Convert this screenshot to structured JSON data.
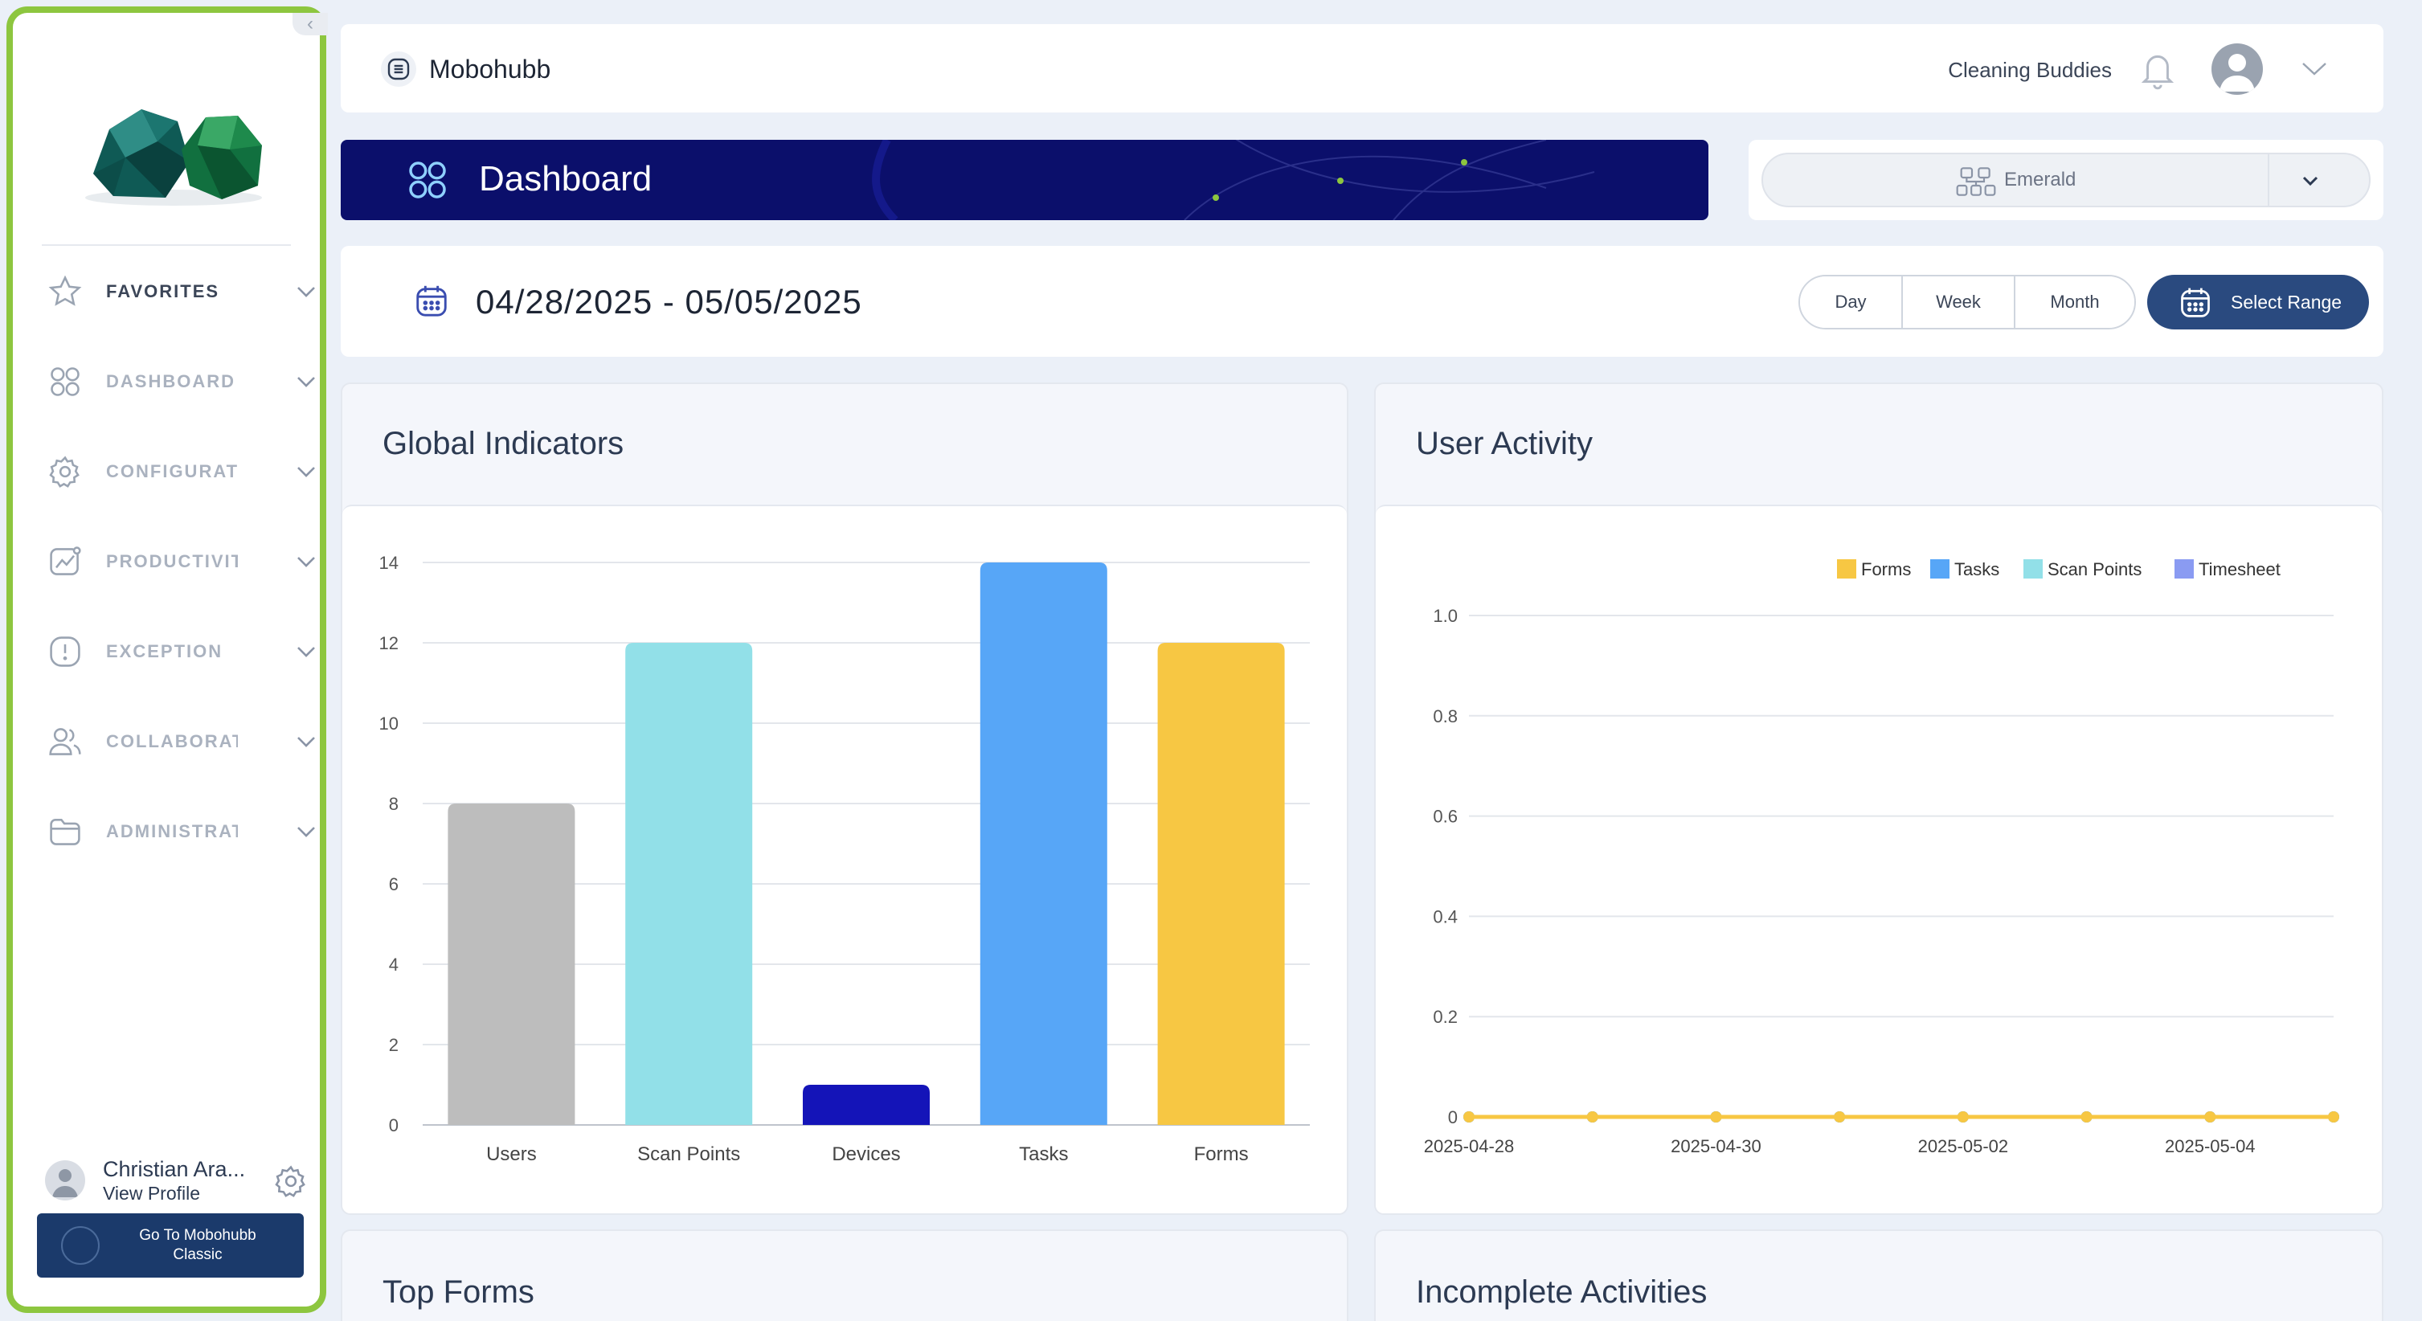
{
  "sidebar": {
    "items": [
      {
        "label": "FAVORITES",
        "icon": "star-icon"
      },
      {
        "label": "DASHBOARD",
        "icon": "grid-icon"
      },
      {
        "label": "CONFIGURATION",
        "icon": "gear-icon"
      },
      {
        "label": "PRODUCTIVITY",
        "icon": "chart-line-icon"
      },
      {
        "label": "EXCEPTION",
        "icon": "alert-icon"
      },
      {
        "label": "COLLABORATION",
        "icon": "users-icon"
      },
      {
        "label": "ADMINISTRATION",
        "icon": "folder-icon"
      }
    ],
    "profile": {
      "name": "Christian Ara...",
      "link": "View Profile"
    },
    "classic_button": "Go To Mobohubb Classic"
  },
  "topbar": {
    "brand": "Mobohubb",
    "company": "Cleaning Buddies"
  },
  "banner": {
    "title": "Dashboard"
  },
  "org_select": {
    "value": "Emerald"
  },
  "date_range": {
    "text": "04/28/2025 - 05/05/2025",
    "buttons": [
      "Day",
      "Week",
      "Month"
    ],
    "select_range": "Select Range"
  },
  "cards": {
    "global_indicators": "Global Indicators",
    "user_activity": "User Activity",
    "top_forms": "Top Forms",
    "incomplete_activities": "Incomplete Activities"
  },
  "colors": {
    "accent": "#2a4a7f",
    "banner": "#0b0f6b",
    "sidebar_border": "#8dc63f"
  },
  "chart_data": [
    {
      "type": "bar",
      "title": "Global Indicators",
      "categories": [
        "Users",
        "Scan Points",
        "Devices",
        "Tasks",
        "Forms"
      ],
      "values": [
        8,
        12,
        1,
        14,
        12
      ],
      "colors": [
        "#bdbdbd",
        "#92e0e8",
        "#1414b8",
        "#57a6f7",
        "#f7c743"
      ],
      "ylim": [
        0,
        14
      ],
      "yticks": [
        0,
        2,
        4,
        6,
        8,
        10,
        12,
        14
      ],
      "grid": true
    },
    {
      "type": "line",
      "title": "User Activity",
      "x": [
        "2025-04-28",
        "2025-04-29",
        "2025-04-30",
        "2025-05-01",
        "2025-05-02",
        "2025-05-03",
        "2025-05-04",
        "2025-05-05"
      ],
      "xtick_labels": [
        "2025-04-28",
        "2025-04-30",
        "2025-05-02",
        "2025-05-04"
      ],
      "series": [
        {
          "name": "Forms",
          "color": "#f7c743",
          "values": [
            0,
            0,
            0,
            0,
            0,
            0,
            0,
            0
          ]
        },
        {
          "name": "Tasks",
          "color": "#57a6f7",
          "values": [
            0,
            0,
            0,
            0,
            0,
            0,
            0,
            0
          ]
        },
        {
          "name": "Scan Points",
          "color": "#92e0e8",
          "values": [
            0,
            0,
            0,
            0,
            0,
            0,
            0,
            0
          ]
        },
        {
          "name": "Timesheet",
          "color": "#8a9bf2",
          "values": [
            0,
            0,
            0,
            0,
            0,
            0,
            0,
            0
          ]
        }
      ],
      "ylim": [
        0,
        1.0
      ],
      "yticks": [
        "0",
        "0.2",
        "0.4",
        "0.6",
        "0.8",
        "1.0"
      ],
      "legend": "top-right",
      "grid": true
    }
  ]
}
